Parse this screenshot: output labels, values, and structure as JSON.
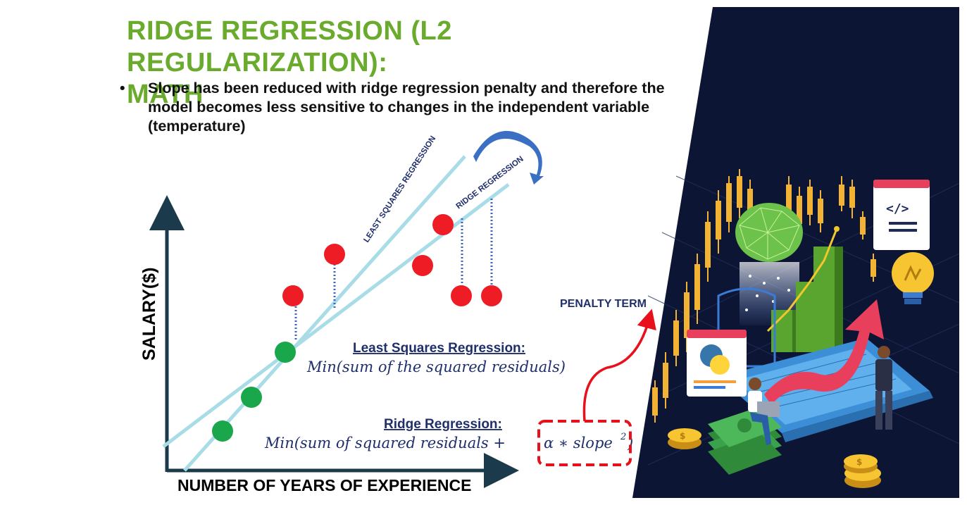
{
  "slide": {
    "title_line1": "RIDGE REGRESSION (L2 REGULARIZATION):",
    "title_line2": "MATH",
    "bullet_marker": "•",
    "bullet_text": "Slope has been reduced with ridge regression penalty and therefore the model becomes less sensitive to changes in the independent variable (temperature)"
  },
  "chart": {
    "y_axis_label": "SALARY($)",
    "x_axis_label": "NUMBER OF YEARS OF EXPERIENCE",
    "least_squares_line_label": "LEAST SQUARES REGRESSION",
    "ridge_line_label": "RIDGE REGRESSION"
  },
  "equations": {
    "least_squares_heading": "Least Squares Regression:",
    "least_squares_formula": "Min(sum of  the squared residuals)",
    "ridge_heading": "Ridge Regression:",
    "ridge_formula_main": "Min(sum of squared residuals + ",
    "ridge_penalty": "α  ∗  slope",
    "ridge_penalty_exp": "2",
    "ridge_close": ")",
    "penalty_label": "PENALTY TERM"
  },
  "colors": {
    "title_green": "#6aab2e",
    "axis": "#1b3a4b",
    "regression_line": "#a8dce6",
    "red_point": "#ee1c25",
    "green_point": "#1aa64a",
    "navy_text": "#1f2f6b",
    "penalty_red": "#e8101a",
    "illustration_bg": "#0d1535"
  }
}
